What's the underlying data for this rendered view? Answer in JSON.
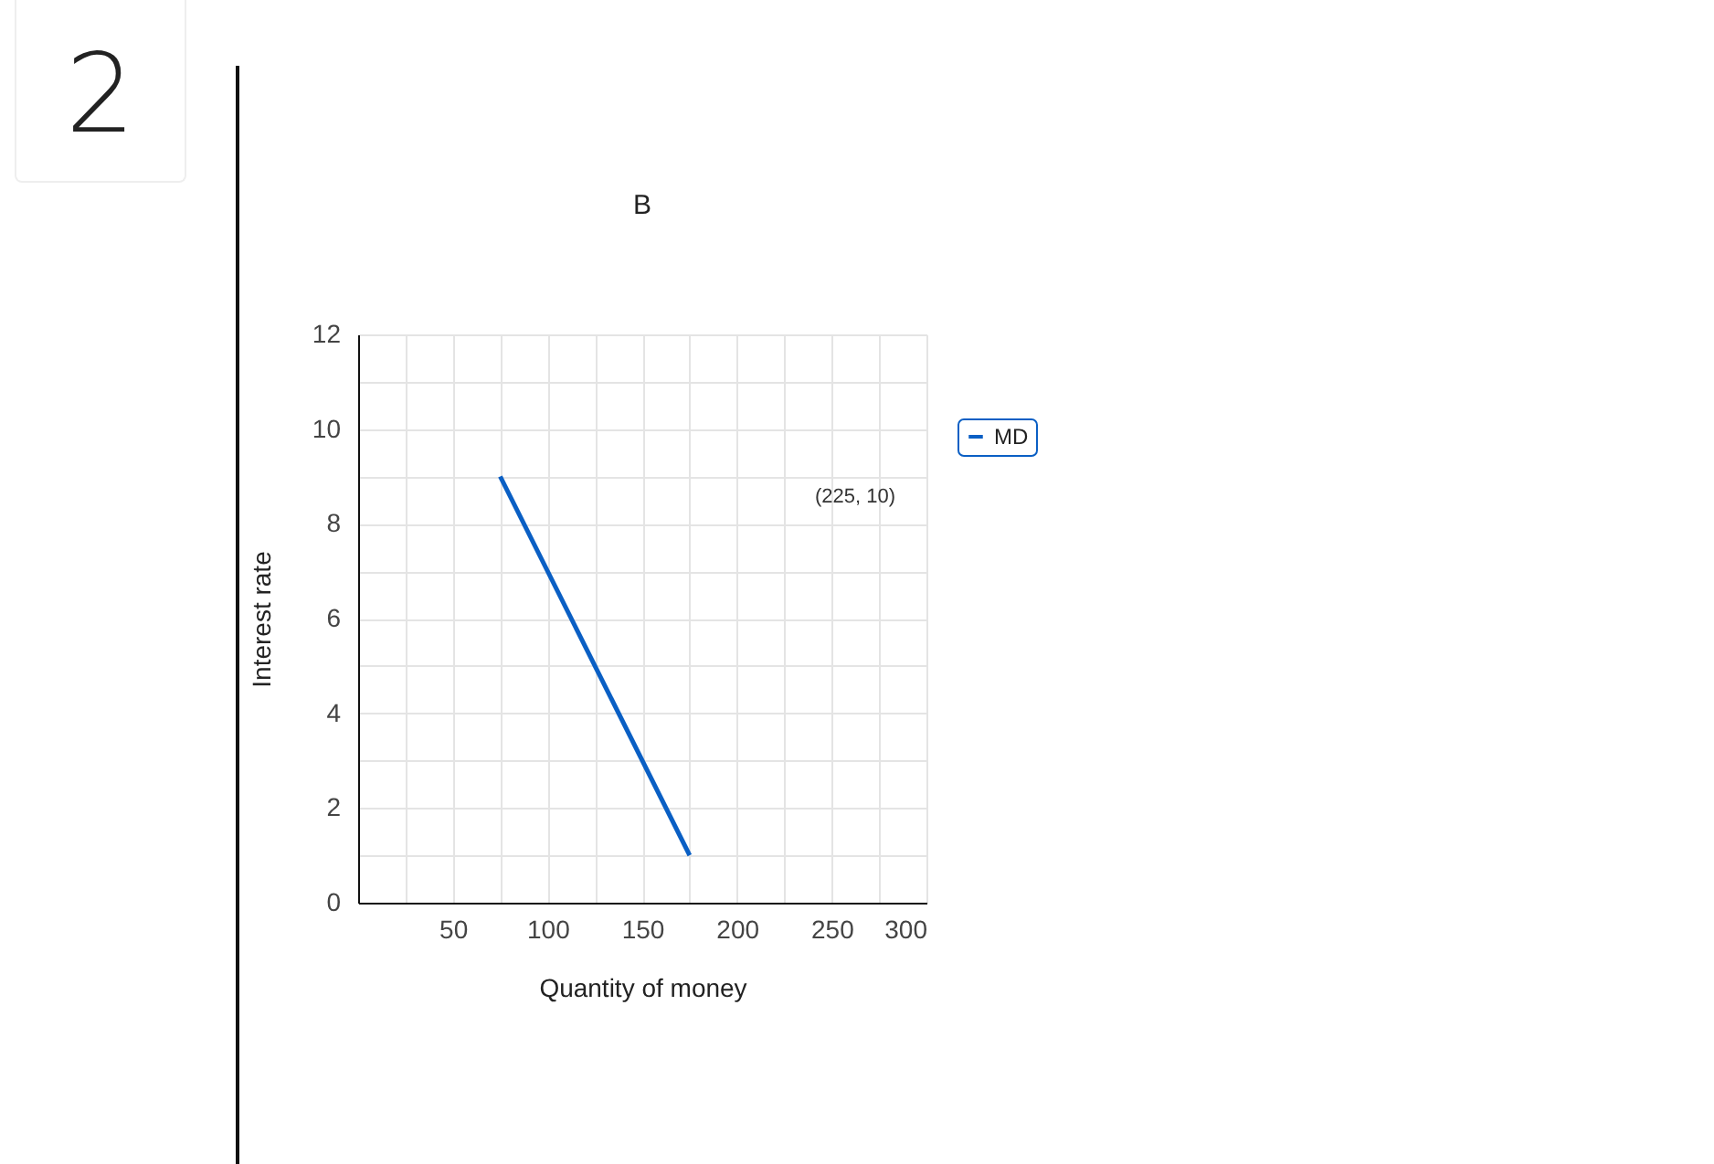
{
  "chart_data": {
    "type": "line",
    "title": "B",
    "xlabel": "Quantity of money",
    "ylabel": "Interest rate",
    "x": [
      75,
      175
    ],
    "series": [
      {
        "name": "MD",
        "color": "#0a5fc4",
        "values": [
          9,
          1
        ]
      }
    ],
    "xlim": [
      0,
      300
    ],
    "ylim": [
      0,
      12
    ],
    "xticks": [
      {
        "value": 25,
        "label": null
      },
      50,
      {
        "value": 75,
        "label": null
      },
      100,
      {
        "value": 125,
        "label": null
      },
      150,
      {
        "value": 175,
        "label": null
      },
      200,
      {
        "value": 225,
        "label": null
      },
      250,
      {
        "value": 275,
        "label": null
      },
      300
    ],
    "yticks": [
      0,
      {
        "value": 1,
        "label": null
      },
      2,
      {
        "value": 3,
        "label": null
      },
      4,
      {
        "value": 5,
        "label": null
      },
      6,
      {
        "value": 7,
        "label": null
      },
      8,
      {
        "value": 9,
        "label": null
      },
      10,
      {
        "value": 11,
        "label": null
      },
      12
    ],
    "grid": true,
    "legend": "top right",
    "marker": "none",
    "line_style": "solid",
    "annotations": [
      "2",
      "(225, 10)"
    ]
  }
}
